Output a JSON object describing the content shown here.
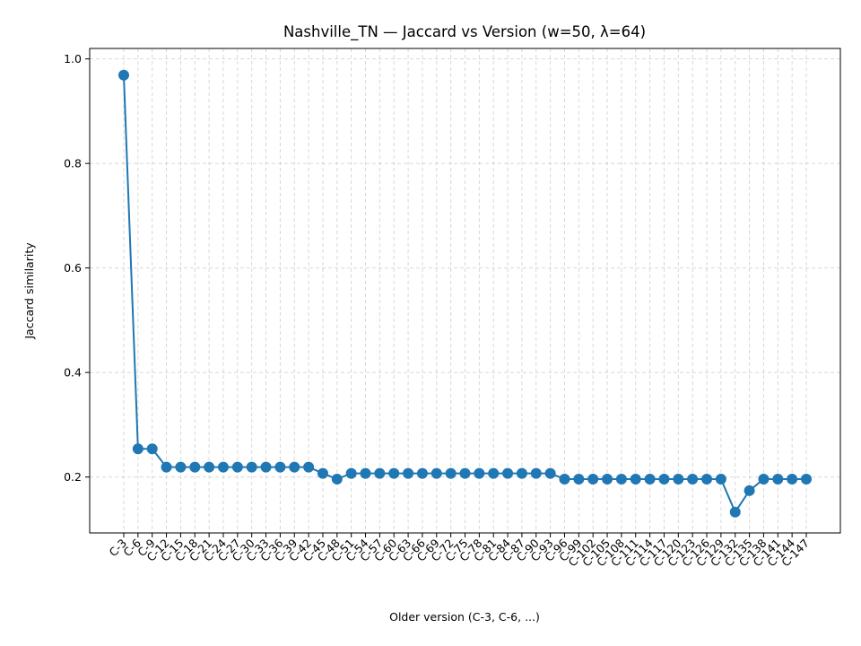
{
  "chart_data": {
    "type": "line",
    "title": "Nashville_TN — Jaccard vs Version (w=50, λ=64)",
    "xlabel": "Older version (C-3, C-6, ...)",
    "ylabel": "Jaccard similarity",
    "ylim": [
      0.093,
      1.02
    ],
    "yticks": [
      0.2,
      0.4,
      0.6,
      0.8,
      1.0
    ],
    "ytick_labels": [
      "0.2",
      "0.4",
      "0.6",
      "0.8",
      "1.0"
    ],
    "grid": true,
    "categories": [
      "C-3",
      "C-6",
      "C-9",
      "C-12",
      "C-15",
      "C-18",
      "C-21",
      "C-24",
      "C-27",
      "C-30",
      "C-33",
      "C-36",
      "C-39",
      "C-42",
      "C-45",
      "C-48",
      "C-51",
      "C-54",
      "C-57",
      "C-60",
      "C-63",
      "C-66",
      "C-69",
      "C-72",
      "C-75",
      "C-78",
      "C-81",
      "C-84",
      "C-87",
      "C-90",
      "C-93",
      "C-96",
      "C-99",
      "C-102",
      "C-105",
      "C-108",
      "C-111",
      "C-114",
      "C-117",
      "C-120",
      "C-123",
      "C-126",
      "C-129",
      "C-132",
      "C-135",
      "C-138",
      "C-141",
      "C-144",
      "C-147"
    ],
    "series": [
      {
        "color": "#1f77b4",
        "values": [
          0.969,
          0.254,
          0.254,
          0.219,
          0.219,
          0.219,
          0.219,
          0.219,
          0.219,
          0.219,
          0.219,
          0.219,
          0.219,
          0.219,
          0.207,
          0.196,
          0.207,
          0.207,
          0.207,
          0.207,
          0.207,
          0.207,
          0.207,
          0.207,
          0.207,
          0.207,
          0.207,
          0.207,
          0.207,
          0.207,
          0.207,
          0.196,
          0.196,
          0.196,
          0.196,
          0.196,
          0.196,
          0.196,
          0.196,
          0.196,
          0.196,
          0.196,
          0.196,
          0.133,
          0.174,
          0.196,
          0.196,
          0.196,
          0.196
        ]
      }
    ]
  }
}
